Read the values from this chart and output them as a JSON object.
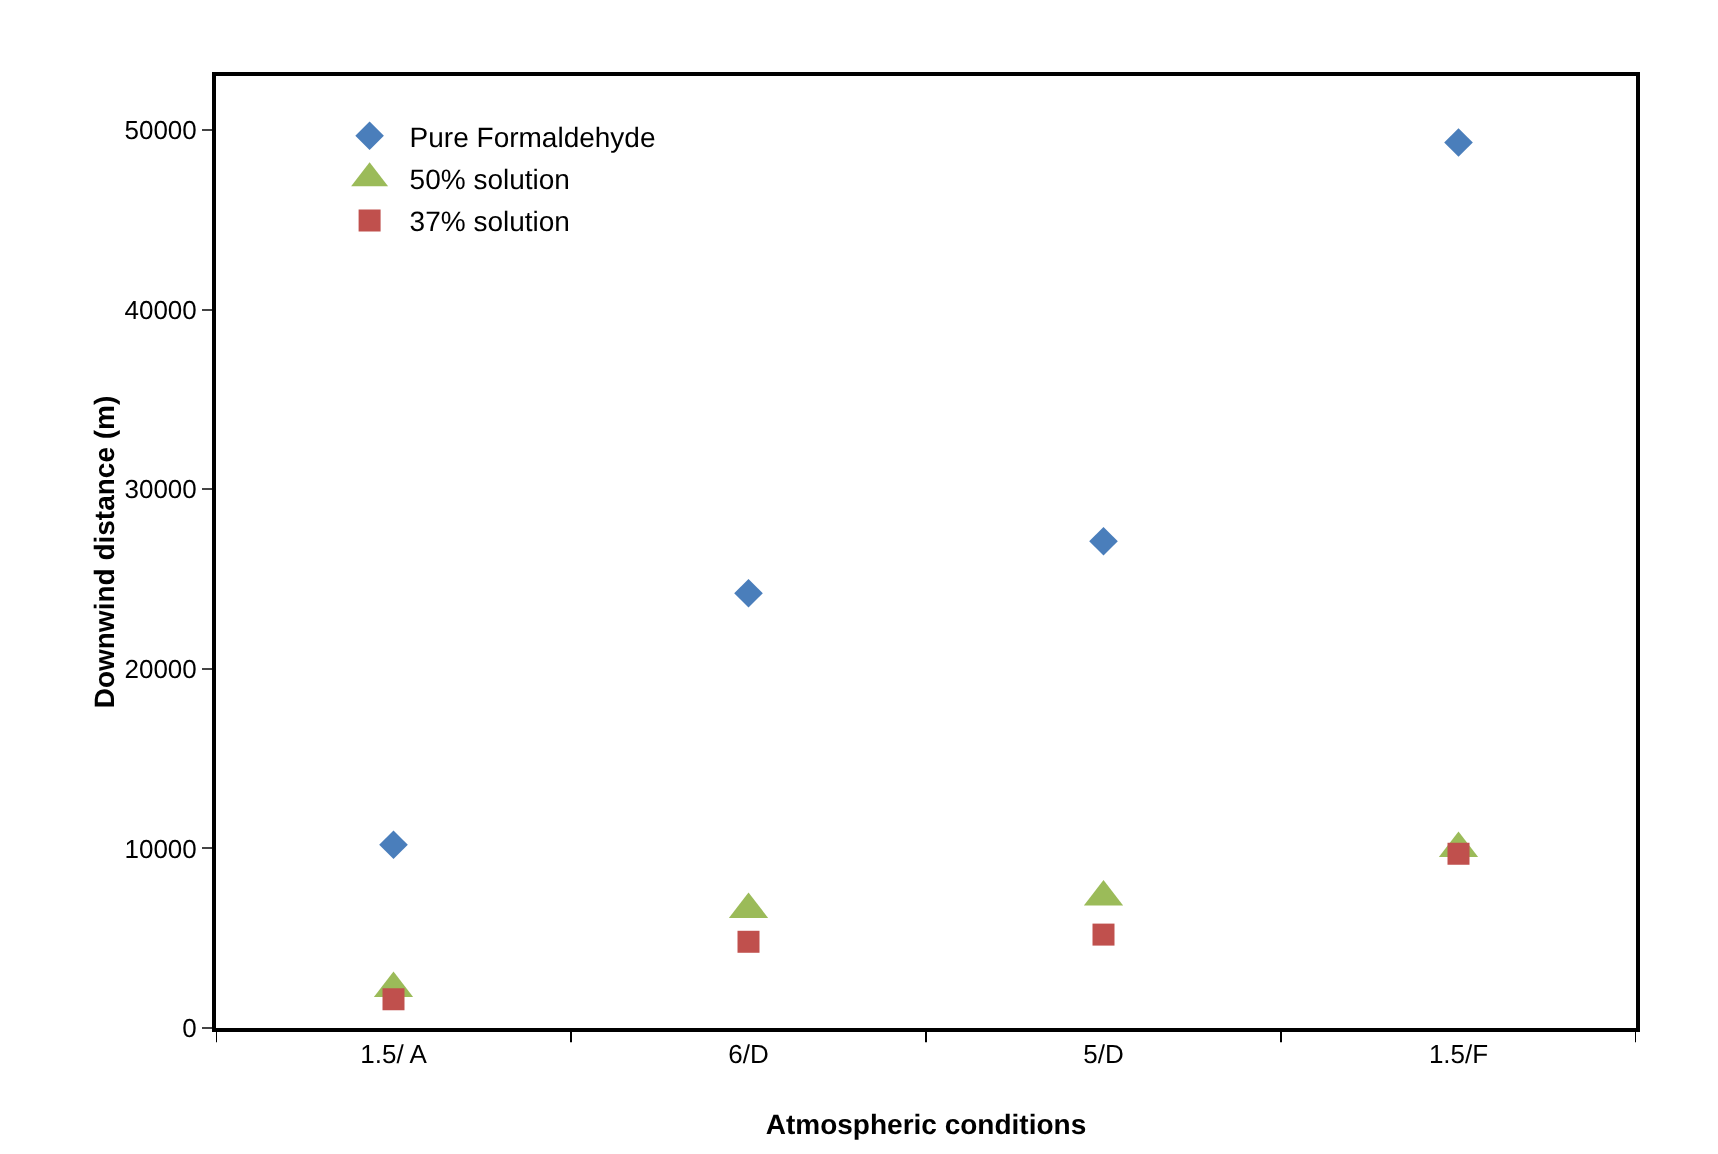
{
  "chart_data": {
    "type": "scatter",
    "xlabel": "Atmospheric conditions",
    "ylabel": "Downwind distance (m)",
    "categories": [
      "1.5/ A",
      "6/D",
      "5/D",
      "1.5/F"
    ],
    "series": [
      {
        "name": "Pure Formaldehyde",
        "color": "#4a7ebb",
        "marker": "diamond",
        "values": [
          10200,
          24200,
          27100,
          49300
        ]
      },
      {
        "name": "50% solution",
        "color": "#9bbb59",
        "marker": "triangle",
        "values": [
          2200,
          6600,
          7300,
          10000
        ]
      },
      {
        "name": "37% solution",
        "color": "#c0504d",
        "marker": "square",
        "values": [
          1600,
          4800,
          5200,
          9700
        ]
      }
    ],
    "ylim": [
      0,
      53000
    ],
    "yticks": [
      0,
      10000,
      20000,
      30000,
      40000,
      50000
    ],
    "grid": false,
    "legend": "top left"
  }
}
